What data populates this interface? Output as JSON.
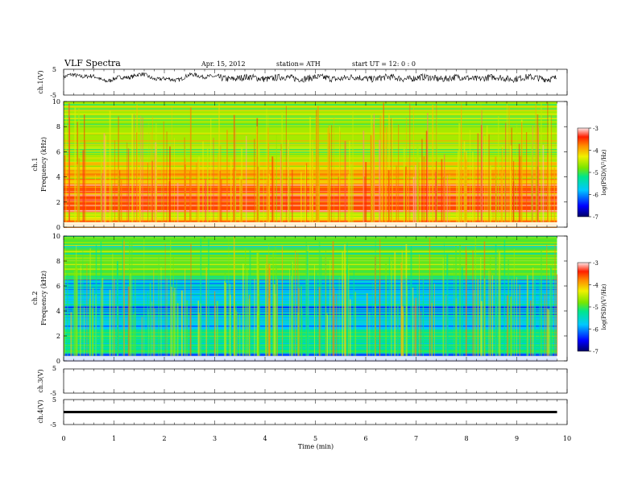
{
  "header": {
    "title": "VLF  Spectra",
    "date": "Apr. 15, 2012",
    "station": "station= ATH",
    "start": "start  UT  =    12: 0   : 0"
  },
  "chart_data": [
    {
      "type": "line",
      "name": "ch1-waveform",
      "ylabel": "ch.1(V)",
      "ytick_labels": [
        "5",
        "-5"
      ],
      "ylim": [
        -5,
        5
      ],
      "xlim": [
        0,
        10
      ],
      "data_end_min": 9.8,
      "trace": "noisy waveform, amplitude approx. 0 to 3.5 V, slow oscillations in first 3 min then denser noise"
    },
    {
      "type": "heatmap",
      "name": "ch1-spectrogram",
      "ylabel_lines": [
        "ch.1",
        "Frequency  (kHz)"
      ],
      "ylim": [
        0,
        10
      ],
      "yticks": [
        0,
        2,
        4,
        6,
        8,
        10
      ],
      "xlim": [
        0,
        10
      ],
      "colorbar": {
        "label": "log(PSD)(V²/Hz)",
        "range": [
          -7,
          -3
        ],
        "tick_labels": [
          "-3",
          "-4",
          "-5",
          "-6",
          "-7"
        ]
      },
      "bands": [
        {
          "f_range": [
            0,
            0.6
          ],
          "level": -4.0
        },
        {
          "f_range": [
            0.6,
            1.2
          ],
          "level": -4.4
        },
        {
          "f_range": [
            1.2,
            3.5
          ],
          "level": -3.6
        },
        {
          "f_range": [
            3.5,
            5.2
          ],
          "level": -4.1
        },
        {
          "f_range": [
            5.2,
            10
          ],
          "level": -4.6
        }
      ]
    },
    {
      "type": "heatmap",
      "name": "ch2-spectrogram",
      "ylabel_lines": [
        "ch.2",
        "Frequency  (kHz)"
      ],
      "ylim": [
        0,
        10
      ],
      "yticks": [
        0,
        2,
        4,
        6,
        8,
        10
      ],
      "xlim": [
        0,
        10
      ],
      "colorbar": {
        "label": "log(PSD)(V²/Hz)",
        "range": [
          -7,
          -3
        ],
        "tick_labels": [
          "-3",
          "-4",
          "-5",
          "-6",
          "-7"
        ]
      },
      "bands": [
        {
          "f_range": [
            0,
            0.6
          ],
          "level": -6.3
        },
        {
          "f_range": [
            0.6,
            2.5
          ],
          "level": -5.2
        },
        {
          "f_range": [
            2.5,
            6.5
          ],
          "level": -5.8
        },
        {
          "f_range": [
            6.5,
            10
          ],
          "level": -4.9
        }
      ]
    },
    {
      "type": "line",
      "name": "ch3-waveform",
      "ylabel": "ch.3(V)",
      "ytick_labels": [
        "5",
        "-5"
      ],
      "ylim": [
        -5,
        5
      ],
      "xlim": [
        0,
        10
      ],
      "trace": "none"
    },
    {
      "type": "line",
      "name": "ch4-waveform",
      "ylabel": "ch.4(V)",
      "ytick_labels": [
        "5",
        "-5"
      ],
      "ylim": [
        -5,
        5
      ],
      "xlim": [
        0,
        10
      ],
      "data_end_min": 9.8,
      "trace": "flat line near 0 V"
    }
  ],
  "xaxis": {
    "label": "Time  (min)",
    "tick_labels": [
      "0",
      "1",
      "2",
      "3",
      "4",
      "5",
      "6",
      "7",
      "8",
      "9",
      "10"
    ]
  }
}
